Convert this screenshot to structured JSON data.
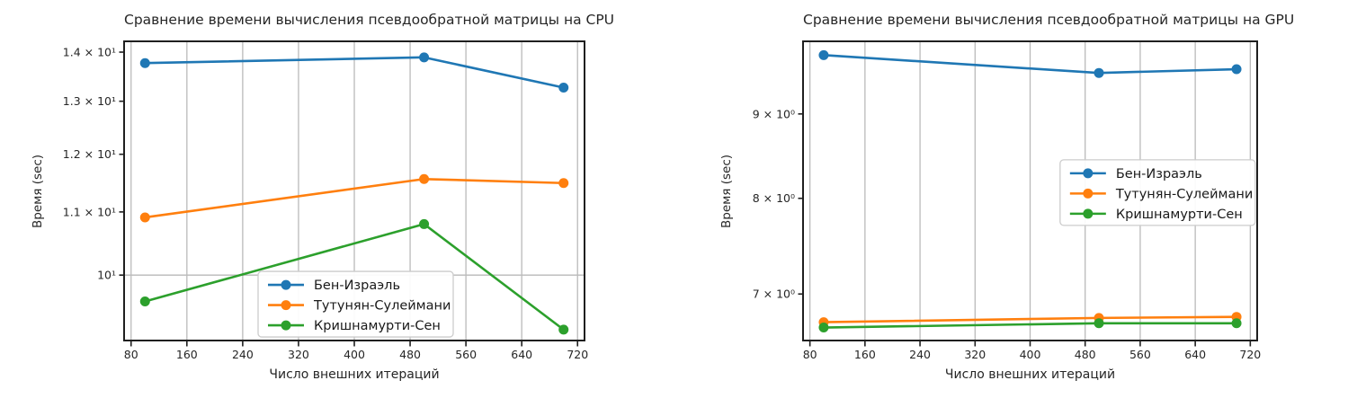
{
  "figure": {
    "background": "#ffffff",
    "text_color": "#262626",
    "grid_color": "#bababa",
    "spine_color": "#1f1f1f",
    "legend_border_color": "#cccccc",
    "legend_background": "#ffffff"
  },
  "chart_data": [
    {
      "id": "cpu",
      "type": "line",
      "title": "Сравнение времени вычисления псевдообратной матрицы на CPU",
      "xlabel": "Число внешних итераций",
      "ylabel": "Время (sec)",
      "yscale": "log",
      "marker": "o",
      "grid": "on",
      "x": [
        100,
        500,
        700
      ],
      "series": [
        {
          "name": "Бен-Израэль",
          "color": "#1f77b4",
          "values": [
            13.77,
            13.89,
            13.27
          ]
        },
        {
          "name": "Тутунян-Сулеймани",
          "color": "#ff7f0e",
          "values": [
            10.91,
            11.56,
            11.49
          ]
        },
        {
          "name": "Кришнамурти-Сен",
          "color": "#2ca02c",
          "values": [
            9.61,
            10.8,
            9.21
          ]
        }
      ],
      "x_ticks": [
        80,
        160,
        240,
        320,
        400,
        480,
        560,
        640,
        720
      ],
      "y_ticks": [
        {
          "value": 14,
          "label": "1.4 × 10¹"
        },
        {
          "value": 13,
          "label": "1.3 × 10¹"
        },
        {
          "value": 12,
          "label": "1.2 × 10¹"
        },
        {
          "value": 11,
          "label": "1.1 × 10¹"
        },
        {
          "value": 10,
          "label": "10¹"
        }
      ],
      "y_gridlines": [
        10
      ],
      "xlim": [
        70,
        730
      ],
      "ylim": [
        9.06,
        14.23
      ],
      "legend_position": "lower center-left",
      "legend_loc": {
        "fx": 0.291,
        "fy": 0.769
      }
    },
    {
      "id": "gpu",
      "type": "line",
      "title": "Сравнение времени вычисления псевдообратной матрицы на GPU",
      "xlabel": "Число внешних итераций",
      "ylabel": "Время (sec)",
      "yscale": "log",
      "marker": "o",
      "grid": "on",
      "x": [
        100,
        500,
        700
      ],
      "series": [
        {
          "name": "Бен-Израэль",
          "color": "#1f77b4",
          "values": [
            9.77,
            9.53,
            9.58
          ]
        },
        {
          "name": "Тутунян-Сулеймани",
          "color": "#ff7f0e",
          "values": [
            6.73,
            6.77,
            6.78
          ]
        },
        {
          "name": "Кришнамурти-Сен",
          "color": "#2ca02c",
          "values": [
            6.68,
            6.72,
            6.72
          ]
        }
      ],
      "x_ticks": [
        80,
        160,
        240,
        320,
        400,
        480,
        560,
        640,
        720
      ],
      "y_ticks": [
        {
          "value": 9,
          "label": "9 × 10⁰"
        },
        {
          "value": 8,
          "label": "8 × 10⁰"
        },
        {
          "value": 7,
          "label": "7 × 10⁰"
        }
      ],
      "y_gridlines": [],
      "xlim": [
        70,
        730
      ],
      "ylim": [
        6.56,
        9.96
      ],
      "legend_position": "center right",
      "legend_loc": {
        "fx": 0.566,
        "fy": 0.396
      }
    }
  ]
}
